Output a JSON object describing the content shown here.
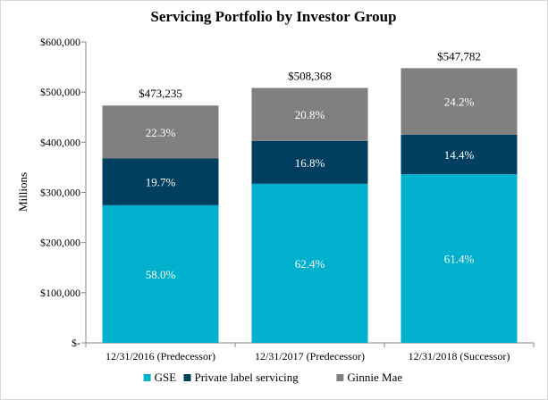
{
  "chart_data": {
    "type": "bar",
    "stacked": true,
    "title": "Servicing Portfolio by Investor Group",
    "ylabel": "Millions",
    "xlabel": "",
    "ylim": [
      0,
      600000
    ],
    "yticks": [
      0,
      100000,
      200000,
      300000,
      400000,
      500000,
      600000
    ],
    "ytick_labels": [
      "$-",
      "$100,000",
      "$200,000",
      "$300,000",
      "$400,000",
      "$500,000",
      "$600,000"
    ],
    "categories": [
      "12/31/2016 (Predecessor)",
      "12/31/2017 (Predecessor)",
      "12/31/2018 (Successor)"
    ],
    "totals": [
      473235,
      508368,
      547782
    ],
    "total_labels": [
      "$473,235",
      "$508,368",
      "$547,782"
    ],
    "series": [
      {
        "name": "GSE",
        "color": "#00b0cc",
        "percent_labels": [
          "58.0%",
          "62.4%",
          "61.4%"
        ],
        "values": [
          274476,
          317222,
          336338
        ]
      },
      {
        "name": "Private label servicing",
        "color": "#003f5f",
        "percent_labels": [
          "19.7%",
          "16.8%",
          "14.4%"
        ],
        "values": [
          93227,
          85406,
          78881
        ]
      },
      {
        "name": "Ginnie Mae",
        "color": "#808080",
        "percent_labels": [
          "22.3%",
          "20.8%",
          "24.2%"
        ],
        "values": [
          105532,
          105740,
          132563
        ]
      }
    ],
    "grid": false,
    "legend_position": "bottom"
  }
}
